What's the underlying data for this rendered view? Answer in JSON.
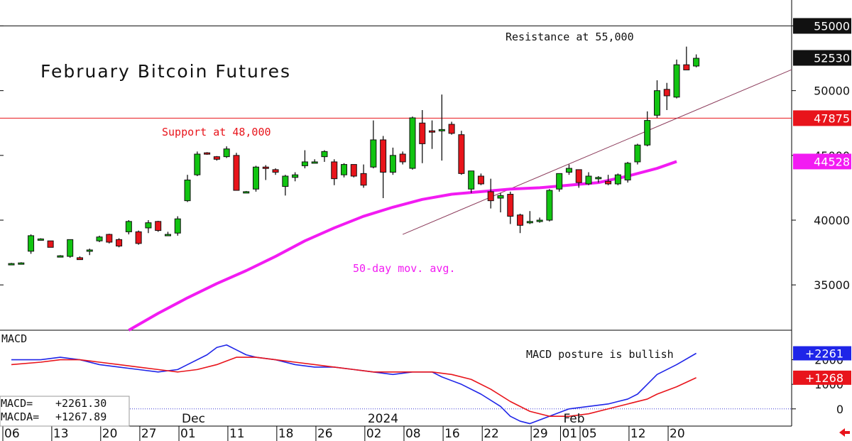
{
  "chart_data": [
    {
      "type": "candlestick",
      "title": "February Bitcoin Futures",
      "ylim": [
        31500,
        57000
      ],
      "y_ticks": [
        35000,
        40000,
        45000,
        50000,
        55000
      ],
      "price_tags": [
        {
          "value": 55000,
          "text": "55000",
          "bg": "#111111",
          "fg": "#ffffff"
        },
        {
          "value": 52530,
          "text": "52530",
          "bg": "#111111",
          "fg": "#ffffff"
        },
        {
          "value": 47875,
          "text": "47875",
          "bg": "#e8141b",
          "fg": "#ffffff"
        },
        {
          "value": 44528,
          "text": "44528",
          "bg": "#f21bf2",
          "fg": "#ffffff"
        }
      ],
      "annotations": [
        {
          "text": "Resistance at 55,000",
          "color": "#111111"
        },
        {
          "text": "Support at 48,000",
          "color": "#e8141b"
        },
        {
          "text": "50-day mov. avg.",
          "color": "#f21bf2"
        }
      ],
      "levels": [
        {
          "value": 55000,
          "color": "#111111"
        },
        {
          "value": 47875,
          "color": "#e8141b"
        }
      ],
      "trendline": {
        "from": {
          "t": 40,
          "v": 38900
        },
        "to": {
          "t": 65,
          "v": 46900
        },
        "color": "#8b3a5a"
      },
      "candles": [
        [
          0,
          36600,
          36700,
          36600,
          36650
        ],
        [
          1,
          36700,
          36750,
          36650,
          36700
        ],
        [
          2,
          37600,
          38900,
          37400,
          38800
        ],
        [
          3,
          38500,
          38600,
          38450,
          38550
        ],
        [
          4,
          38400,
          38400,
          37900,
          37900
        ],
        [
          5,
          37200,
          37300,
          37150,
          37250
        ],
        [
          6,
          37200,
          38500,
          37100,
          38500
        ],
        [
          7,
          37100,
          37200,
          36950,
          36950
        ],
        [
          8,
          37600,
          37800,
          37300,
          37700
        ],
        [
          9,
          38400,
          38800,
          38300,
          38700
        ],
        [
          10,
          38900,
          38950,
          38200,
          38300
        ],
        [
          11,
          38500,
          38600,
          37900,
          38000
        ],
        [
          12,
          39100,
          40000,
          38900,
          39900
        ],
        [
          13,
          39100,
          39200,
          38100,
          38200
        ],
        [
          14,
          39400,
          40000,
          39000,
          39800
        ],
        [
          15,
          39900,
          39950,
          39100,
          39200
        ],
        [
          16,
          38900,
          39100,
          38800,
          38900
        ],
        [
          17,
          39000,
          40300,
          38800,
          40100
        ],
        [
          18,
          41500,
          43500,
          41400,
          43100
        ],
        [
          19,
          43500,
          45300,
          43400,
          45100
        ],
        [
          20,
          45200,
          45250,
          45050,
          45150
        ],
        [
          21,
          44900,
          44950,
          44600,
          44700
        ],
        [
          22,
          44900,
          45700,
          44800,
          45500
        ],
        [
          23,
          45000,
          45200,
          42300,
          42300
        ],
        [
          24,
          42200,
          42250,
          42150,
          42200
        ],
        [
          25,
          42400,
          44200,
          42200,
          44100
        ],
        [
          26,
          44100,
          44250,
          43100,
          44000
        ],
        [
          27,
          43900,
          44000,
          43500,
          43700
        ],
        [
          28,
          42600,
          43500,
          41900,
          43400
        ],
        [
          29,
          43300,
          43700,
          43000,
          43500
        ],
        [
          30,
          44200,
          45400,
          44000,
          44500
        ],
        [
          31,
          44500,
          44700,
          44400,
          44500
        ],
        [
          32,
          44900,
          45400,
          44500,
          45300
        ],
        [
          33,
          44500,
          44700,
          42700,
          43200
        ],
        [
          34,
          43500,
          44400,
          43300,
          44300
        ],
        [
          35,
          44300,
          44300,
          43300,
          43400
        ],
        [
          36,
          43600,
          44300,
          42500,
          42700
        ],
        [
          37,
          44100,
          47700,
          44000,
          46200
        ],
        [
          38,
          46200,
          46500,
          41700,
          43700
        ],
        [
          39,
          43700,
          45600,
          43500,
          45000
        ],
        [
          40,
          45100,
          45300,
          44300,
          44500
        ],
        [
          41,
          44000,
          48000,
          43900,
          47900
        ],
        [
          42,
          47500,
          48500,
          44400,
          45900
        ],
        [
          43,
          46900,
          47700,
          45500,
          46800
        ],
        [
          44,
          46900,
          49700,
          44600,
          47000
        ],
        [
          45,
          47400,
          47600,
          46600,
          46700
        ],
        [
          46,
          46600,
          46900,
          43500,
          43600
        ],
        [
          47,
          42400,
          43800,
          42100,
          43800
        ],
        [
          48,
          43400,
          43600,
          42700,
          42800
        ],
        [
          49,
          42200,
          43200,
          40900,
          41500
        ],
        [
          50,
          41700,
          42100,
          40600,
          41900
        ],
        [
          51,
          42000,
          42200,
          39700,
          40300
        ],
        [
          52,
          40400,
          40500,
          39000,
          39600
        ],
        [
          53,
          39800,
          40700,
          39700,
          39900
        ],
        [
          54,
          39900,
          40200,
          39800,
          40000
        ],
        [
          55,
          40000,
          42400,
          39900,
          42300
        ],
        [
          56,
          42400,
          43600,
          42200,
          43600
        ],
        [
          57,
          43700,
          44300,
          43500,
          44000
        ],
        [
          58,
          43900,
          43900,
          42500,
          42900
        ],
        [
          59,
          42800,
          43700,
          42700,
          43400
        ],
        [
          60,
          43200,
          43400,
          42900,
          43300
        ],
        [
          61,
          43000,
          43500,
          42700,
          42800
        ],
        [
          62,
          42800,
          43600,
          42700,
          43500
        ],
        [
          63,
          43100,
          44500,
          42900,
          44400
        ],
        [
          64,
          44500,
          45900,
          44300,
          45800
        ],
        [
          65,
          45800,
          48400,
          45700,
          47700
        ],
        [
          66,
          48100,
          50800,
          47900,
          50000
        ],
        [
          67,
          50100,
          50600,
          48500,
          49600
        ],
        [
          68,
          49500,
          52400,
          49400,
          52000
        ],
        [
          69,
          52000,
          53400,
          51700,
          51600
        ],
        [
          70,
          51900,
          52800,
          51800,
          52500
        ]
      ],
      "moving_average_50": {
        "name": "50-day mov. avg.",
        "t": [
          12,
          15,
          18,
          21,
          24,
          27,
          30,
          33,
          36,
          39,
          42,
          45,
          48,
          51,
          54,
          57,
          60,
          63,
          66,
          68
        ],
        "v": [
          31500,
          32800,
          34000,
          35100,
          36100,
          37200,
          38400,
          39400,
          40300,
          41000,
          41600,
          42000,
          42200,
          42400,
          42500,
          42700,
          42900,
          43400,
          44000,
          44528
        ]
      },
      "x_ticks": [
        {
          "t": 0,
          "label": "06"
        },
        {
          "t": 5,
          "label": "13"
        },
        {
          "t": 10,
          "label": "20"
        },
        {
          "t": 14,
          "label": "27"
        },
        {
          "t": 18,
          "label": "01"
        },
        {
          "t": 23,
          "label": "11"
        },
        {
          "t": 28,
          "label": "18"
        },
        {
          "t": 32,
          "label": "26"
        },
        {
          "t": 37,
          "label": "02"
        },
        {
          "t": 41,
          "label": "08"
        },
        {
          "t": 45,
          "label": "16"
        },
        {
          "t": 49,
          "label": "22"
        },
        {
          "t": 54,
          "label": "29"
        },
        {
          "t": 57,
          "label": "01"
        },
        {
          "t": 59,
          "label": "05"
        },
        {
          "t": 64,
          "label": "12"
        },
        {
          "t": 68,
          "label": "20"
        }
      ],
      "period_labels": [
        {
          "t": 18,
          "label": "Dec"
        },
        {
          "t": 37,
          "label": "2024"
        },
        {
          "t": 57,
          "label": "Feb"
        }
      ]
    },
    {
      "type": "line",
      "title": "MACD",
      "ylim": [
        -700,
        3200
      ],
      "y_ticks": [
        0,
        1000,
        2000
      ],
      "zero_line_color": "#3a3ad6",
      "note": "MACD posture is bullish",
      "value_tags": [
        {
          "value": 2261,
          "text": "+2261",
          "bg": "#1f25e8",
          "fg": "#ffffff"
        },
        {
          "value": 1268,
          "text": "+1268",
          "bg": "#e8141b",
          "fg": "#ffffff"
        }
      ],
      "readout": [
        {
          "label": "MACD=",
          "value": "+2261.30"
        },
        {
          "label": "MACDA=",
          "value": "+1267.89"
        }
      ],
      "series": [
        {
          "name": "MACD",
          "color": "#1f25e8",
          "t": [
            0,
            3,
            5,
            7,
            9,
            11,
            13,
            15,
            17,
            18,
            20,
            21,
            22,
            23,
            24,
            25,
            27,
            29,
            31,
            33,
            35,
            37,
            39,
            41,
            43,
            44,
            46,
            48,
            50,
            51,
            52,
            53,
            55,
            57,
            59,
            61,
            62,
            63,
            64,
            65,
            66,
            68,
            70
          ],
          "v": [
            2000,
            2000,
            2100,
            2000,
            1800,
            1700,
            1600,
            1500,
            1600,
            1800,
            2200,
            2500,
            2600,
            2400,
            2200,
            2100,
            2000,
            1800,
            1700,
            1700,
            1600,
            1500,
            1400,
            1500,
            1500,
            1300,
            1000,
            600,
            100,
            -300,
            -500,
            -600,
            -300,
            0,
            100,
            200,
            300,
            400,
            600,
            1000,
            1400,
            1800,
            2261
          ]
        },
        {
          "name": "MACDA",
          "color": "#e8141b",
          "t": [
            0,
            3,
            5,
            7,
            9,
            11,
            13,
            15,
            17,
            19,
            21,
            23,
            25,
            27,
            29,
            31,
            33,
            35,
            37,
            39,
            41,
            43,
            45,
            47,
            49,
            51,
            53,
            55,
            57,
            59,
            61,
            63,
            65,
            66,
            68,
            70
          ],
          "v": [
            1800,
            1900,
            2000,
            2000,
            1900,
            1800,
            1700,
            1600,
            1500,
            1600,
            1800,
            2100,
            2100,
            2000,
            1900,
            1800,
            1700,
            1600,
            1500,
            1500,
            1500,
            1500,
            1400,
            1200,
            800,
            300,
            -100,
            -300,
            -300,
            -200,
            0,
            200,
            400,
            600,
            900,
            1268
          ]
        }
      ]
    }
  ]
}
